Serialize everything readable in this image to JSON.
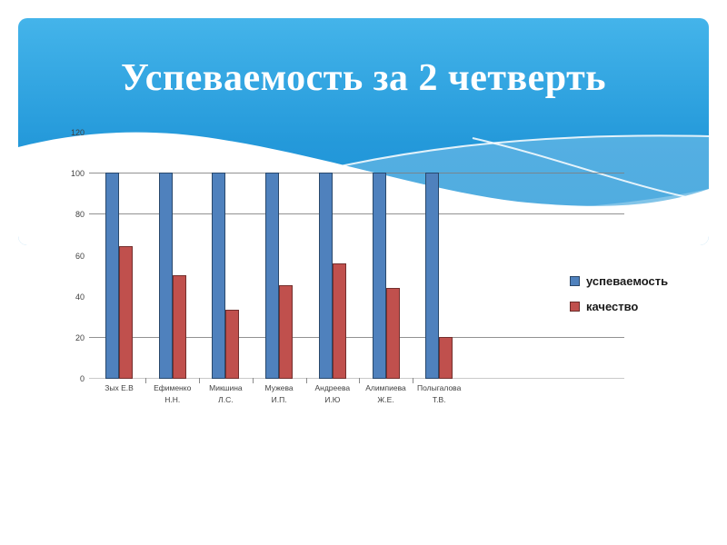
{
  "slide": {
    "title": "Успеваемость за 2 четверть",
    "background": {
      "panel_top_color": "#44b4ea",
      "panel_bottom_color": "#1e93d6",
      "page_color": "#ffffff",
      "decoration": "white-waves"
    }
  },
  "chart_data": {
    "type": "bar",
    "title": "",
    "xlabel": "",
    "ylabel": "",
    "categories": [
      "Зых Е.В",
      "Ефименко Н.Н.",
      "Микшина Л.С.",
      "Мужева И.П.",
      "Андреева И.Ю",
      "Алимпиева Ж.Е.",
      "Полыгалова Т.В."
    ],
    "category_lines": [
      [
        "Зых Е.В"
      ],
      [
        "Ефименко",
        "Н.Н."
      ],
      [
        "Микшина",
        "Л.С."
      ],
      [
        "Мужева",
        "И.П."
      ],
      [
        "Андреева",
        "И.Ю"
      ],
      [
        "Алимпиева",
        "Ж.Е."
      ],
      [
        "Полыгалова",
        "Т.В."
      ]
    ],
    "series": [
      {
        "name": "успеваемость",
        "color": "#4f81bd",
        "border_color": "#29486b",
        "values": [
          100,
          100,
          100,
          100,
          100,
          100,
          100
        ]
      },
      {
        "name": "качество",
        "color": "#c0504d",
        "border_color": "#732f2d",
        "values": [
          64,
          50,
          33,
          45,
          56,
          44,
          20
        ]
      }
    ],
    "ylim": [
      0,
      120
    ],
    "yticks": [
      0,
      20,
      40,
      60,
      80,
      100,
      120
    ],
    "gridline_values": [
      20,
      80,
      100
    ],
    "grid": true,
    "legend_position": "right",
    "axis_color": "#7f7f7f",
    "tick_label_color": "#404040",
    "legend_text_color": "#1a1a1a"
  }
}
